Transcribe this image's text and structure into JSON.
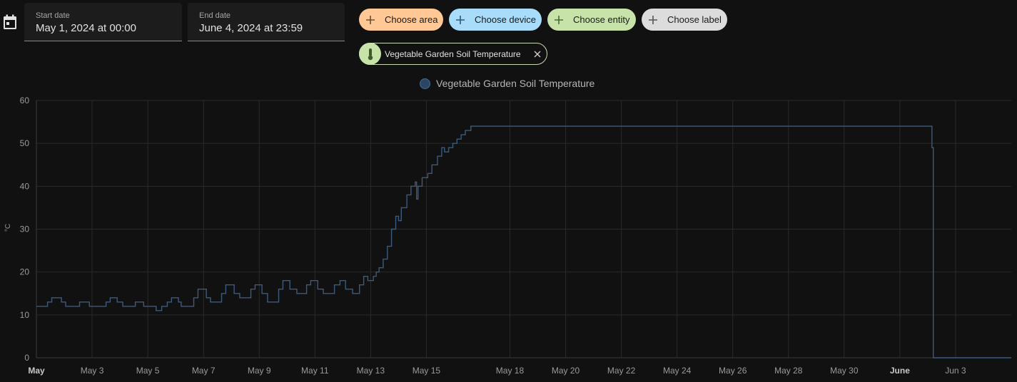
{
  "date_range": {
    "start_label": "Start date",
    "start_value": "May 1, 2024 at 00:00",
    "end_label": "End date",
    "end_value": "June 4, 2024 at 23:59"
  },
  "target_picker": {
    "choose_area": "Choose area",
    "choose_device": "Choose device",
    "choose_entity": "Choose entity",
    "choose_label": "Choose label"
  },
  "selected_entity": {
    "name": "Vegetable Garden Soil Temperature",
    "icon": "thermometer-icon"
  },
  "colors": {
    "background": "#111111",
    "series_line": "#3b5a80",
    "area": "#ffc894",
    "device": "#a8dcf8",
    "entity": "#c7e3a9",
    "label": "#dcdcdc"
  },
  "chart_data": {
    "type": "line",
    "title": "",
    "legend": [
      "Vegetable Garden Soil Temperature"
    ],
    "legend_position": "top-center",
    "ylabel": "°C",
    "ylim": [
      0,
      60
    ],
    "yticks": [
      0,
      10,
      20,
      30,
      40,
      50,
      60
    ],
    "xlim": [
      0,
      35
    ],
    "xticks": [
      {
        "day": 0,
        "label": "May",
        "bold": true
      },
      {
        "day": 2,
        "label": "May 3"
      },
      {
        "day": 4,
        "label": "May 5"
      },
      {
        "day": 6,
        "label": "May 7"
      },
      {
        "day": 8,
        "label": "May 9"
      },
      {
        "day": 10,
        "label": "May 11"
      },
      {
        "day": 12,
        "label": "May 13"
      },
      {
        "day": 14,
        "label": "May 15"
      },
      {
        "day": 17,
        "label": "May 18"
      },
      {
        "day": 19,
        "label": "May 20"
      },
      {
        "day": 21,
        "label": "May 22"
      },
      {
        "day": 23,
        "label": "May 24"
      },
      {
        "day": 25,
        "label": "May 26"
      },
      {
        "day": 27,
        "label": "May 28"
      },
      {
        "day": 29,
        "label": "May 30"
      },
      {
        "day": 31,
        "label": "June",
        "bold": true
      },
      {
        "day": 33,
        "label": "Jun 3"
      }
    ],
    "grid": true,
    "series": [
      {
        "name": "Vegetable Garden Soil Temperature",
        "step": true,
        "points": [
          [
            0,
            12
          ],
          [
            0.4,
            13
          ],
          [
            0.55,
            14
          ],
          [
            0.9,
            13
          ],
          [
            1.05,
            12
          ],
          [
            1.55,
            13
          ],
          [
            1.9,
            12
          ],
          [
            2.5,
            13
          ],
          [
            2.65,
            14
          ],
          [
            2.9,
            13
          ],
          [
            3.1,
            12
          ],
          [
            3.55,
            13
          ],
          [
            3.85,
            12
          ],
          [
            4.15,
            12
          ],
          [
            4.3,
            11
          ],
          [
            4.5,
            12
          ],
          [
            4.7,
            13
          ],
          [
            4.85,
            14
          ],
          [
            5.1,
            13
          ],
          [
            5.2,
            12
          ],
          [
            5.65,
            14
          ],
          [
            5.8,
            16
          ],
          [
            6.1,
            14
          ],
          [
            6.25,
            13
          ],
          [
            6.65,
            15
          ],
          [
            6.8,
            17
          ],
          [
            7.1,
            15
          ],
          [
            7.3,
            14
          ],
          [
            7.7,
            16
          ],
          [
            7.85,
            17
          ],
          [
            8.1,
            15
          ],
          [
            8.3,
            13
          ],
          [
            8.7,
            16
          ],
          [
            8.85,
            18
          ],
          [
            9.1,
            16
          ],
          [
            9.35,
            15
          ],
          [
            9.7,
            17
          ],
          [
            9.85,
            18
          ],
          [
            10.1,
            16
          ],
          [
            10.3,
            15
          ],
          [
            10.7,
            17
          ],
          [
            10.9,
            18
          ],
          [
            11.1,
            16
          ],
          [
            11.35,
            15
          ],
          [
            11.6,
            17
          ],
          [
            11.75,
            19
          ],
          [
            11.9,
            18
          ],
          [
            12.1,
            19
          ],
          [
            12.2,
            20
          ],
          [
            12.3,
            21
          ],
          [
            12.45,
            23
          ],
          [
            12.6,
            26
          ],
          [
            12.75,
            30
          ],
          [
            12.9,
            33
          ],
          [
            13.0,
            32
          ],
          [
            13.1,
            35
          ],
          [
            13.3,
            38
          ],
          [
            13.45,
            40
          ],
          [
            13.6,
            41
          ],
          [
            13.65,
            37
          ],
          [
            13.7,
            40
          ],
          [
            13.85,
            42
          ],
          [
            14.05,
            43
          ],
          [
            14.2,
            45
          ],
          [
            14.4,
            47
          ],
          [
            14.55,
            49
          ],
          [
            14.65,
            48
          ],
          [
            14.8,
            49
          ],
          [
            14.95,
            50
          ],
          [
            15.1,
            51
          ],
          [
            15.25,
            52
          ],
          [
            15.4,
            53
          ],
          [
            15.6,
            54
          ],
          [
            32.1,
            54
          ],
          [
            32.15,
            49
          ],
          [
            32.2,
            0
          ],
          [
            35,
            0
          ]
        ]
      }
    ]
  }
}
